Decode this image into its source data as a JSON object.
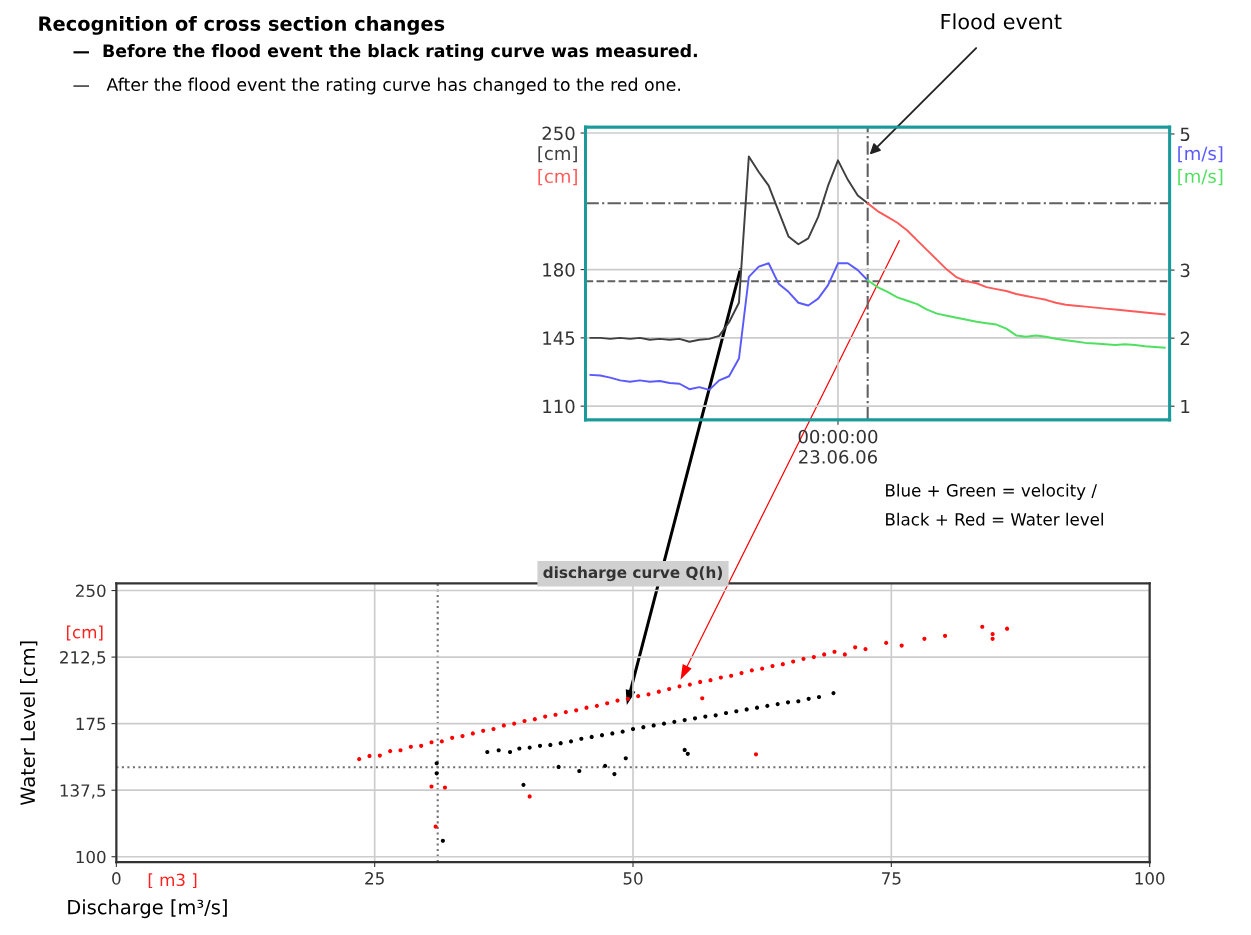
{
  "chart_data": [
    {
      "type": "line",
      "title": "Recognition of cross section changes",
      "categories": [
        null,
        null,
        null,
        null,
        null,
        null,
        null,
        null,
        null,
        null,
        null,
        null,
        null,
        null,
        null,
        null,
        null,
        null,
        null,
        null,
        null,
        null,
        null,
        null,
        null,
        "00:00:00\n23.06.06",
        null,
        null,
        null,
        null,
        null,
        null,
        null,
        null,
        null,
        null,
        null,
        null,
        null,
        null,
        null,
        null,
        null,
        null,
        null,
        null,
        null,
        null,
        null,
        null,
        null,
        null,
        null,
        null,
        null,
        null,
        null,
        null,
        null
      ],
      "series": [
        {
          "name": "[cm]",
          "color": "#404040",
          "values": [
            145,
            145,
            144.5,
            145,
            144.5,
            145,
            144,
            144.5,
            144,
            144.5,
            143,
            144,
            144.5,
            146,
            153,
            163,
            238,
            230,
            223,
            210,
            197,
            193,
            196,
            207,
            223,
            236,
            226,
            218,
            214,
            null,
            null,
            null,
            null,
            null,
            null,
            null,
            null,
            null,
            null,
            null,
            null,
            null,
            null,
            null,
            null,
            null,
            null,
            null,
            null,
            null,
            null,
            null,
            null,
            null,
            null,
            null,
            null,
            null,
            null
          ]
        },
        {
          "name": "[cm]",
          "color": "#ff5a5a",
          "values": [
            null,
            null,
            null,
            null,
            null,
            null,
            null,
            null,
            null,
            null,
            null,
            null,
            null,
            null,
            null,
            null,
            null,
            null,
            null,
            null,
            null,
            null,
            null,
            null,
            null,
            null,
            null,
            null,
            214,
            210,
            207,
            204,
            200,
            195,
            190,
            185,
            180,
            176,
            174,
            173,
            171,
            170,
            169,
            167.5,
            166.5,
            165.5,
            164.5,
            163,
            162,
            161.5,
            161,
            160.5,
            160,
            159.5,
            159,
            158.5,
            158,
            157.5,
            157
          ]
        },
        {
          "name": "[m/s]",
          "color": "#5a5aff",
          "axis": "y2",
          "values": [
            1.46,
            1.45,
            1.42,
            1.38,
            1.36,
            1.38,
            1.36,
            1.37,
            1.34,
            1.33,
            1.25,
            1.28,
            1.24,
            1.38,
            1.44,
            1.7,
            2.9,
            3.05,
            3.1,
            2.8,
            2.68,
            2.52,
            2.48,
            2.58,
            2.78,
            3.1,
            3.1,
            3.0,
            2.85,
            null,
            null,
            null,
            null,
            null,
            null,
            null,
            null,
            null,
            null,
            null,
            null,
            null,
            null,
            null,
            null,
            null,
            null,
            null,
            null,
            null,
            null,
            null,
            null,
            null,
            null,
            null,
            null,
            null,
            null
          ]
        },
        {
          "name": "[m/s]",
          "color": "#4fe060",
          "axis": "y2",
          "values": [
            null,
            null,
            null,
            null,
            null,
            null,
            null,
            null,
            null,
            null,
            null,
            null,
            null,
            null,
            null,
            null,
            null,
            null,
            null,
            null,
            null,
            null,
            null,
            null,
            null,
            null,
            null,
            null,
            2.85,
            2.75,
            2.68,
            2.6,
            2.55,
            2.5,
            2.42,
            2.36,
            2.33,
            2.3,
            2.27,
            2.24,
            2.22,
            2.2,
            2.14,
            2.04,
            2.02,
            2.04,
            2.02,
            1.99,
            1.97,
            1.95,
            1.93,
            1.92,
            1.91,
            1.9,
            1.91,
            1.9,
            1.88,
            1.87,
            1.86
          ]
        }
      ],
      "ylim": [
        103,
        253
      ],
      "yticks": [
        110,
        145,
        180,
        250
      ],
      "y2lim": [
        0.8,
        5.1
      ],
      "y2ticks": [
        1,
        2,
        3,
        5
      ],
      "grid": true,
      "marker": "none",
      "line_style": "solid",
      "ref_lines": [
        {
          "axis": "y",
          "value": 214,
          "line_style": "dashdot",
          "color": "#606060"
        },
        {
          "axis": "y",
          "value": 174,
          "line_style": "dashed",
          "color": "#606060"
        }
      ],
      "annotations": [
        "—  Before the flood event the black rating curve was measured.",
        "—   After the flood event the rating curve has changed to the red one.",
        "Flood event",
        "Blue + Green = velocity /",
        "Black + Red = Water level"
      ]
    },
    {
      "type": "scatter",
      "title": "discharge curve Q(h)",
      "xlabel": "Discharge [m³/s]",
      "ylabel": "Water Level [cm]",
      "xlim": [
        0,
        100
      ],
      "xticks": [
        0,
        25,
        50,
        75,
        100
      ],
      "ylim": [
        97,
        254
      ],
      "yticks": [
        100,
        {
          "value": 137.5,
          "label": "137,5"
        },
        175,
        {
          "value": 212.5,
          "label": "212,5"
        },
        250
      ],
      "grid": true,
      "marker": "circle",
      "series": [
        {
          "color": "#ff0000",
          "x": [
            23.5,
            24.5,
            25.5,
            26.5,
            27.5,
            28.5,
            29.5,
            30.5,
            31.5,
            32.5,
            33.5,
            34.5,
            35.5,
            36.5,
            37.5,
            38.5,
            39.5,
            40.5,
            41.5,
            42.5,
            43.5,
            44.5,
            45.5,
            46.5,
            47.5,
            48.5,
            49.5,
            50.5,
            51.5,
            52.5,
            53.5,
            54.5,
            55.5,
            56.5,
            57.5,
            58.5,
            59.5,
            60.5,
            61.5,
            62.5,
            63.5,
            64.5,
            65.5,
            66.5,
            67.5,
            68.5,
            69.5,
            70.5,
            71.5,
            72.5,
            74.5,
            76,
            78.2,
            80.2,
            83.8,
            84.8,
            84.8,
            86.2,
            30.5,
            30.9,
            31.8,
            40,
            61.9,
            56.7
          ],
          "values": [
            155,
            156.8,
            157,
            159.5,
            160,
            162,
            162.5,
            164.5,
            165,
            167,
            168,
            169.5,
            171,
            172,
            174,
            175,
            176.5,
            177.5,
            179,
            180,
            181.5,
            182.5,
            184,
            185,
            186.5,
            188,
            189,
            190.5,
            191.5,
            193,
            194.5,
            196,
            197,
            198.5,
            199.5,
            201,
            202,
            203.5,
            205,
            206,
            207.5,
            208.5,
            210,
            211.5,
            212.5,
            214,
            215.5,
            214,
            218,
            217,
            220.5,
            219,
            222.8,
            224.5,
            229.6,
            222.8,
            225.5,
            228.5,
            139.6,
            117,
            139,
            134,
            157.7,
            189.3
          ]
        },
        {
          "color": "#000000",
          "x": [
            35.9,
            37,
            38.1,
            39,
            40,
            41,
            42,
            43,
            44,
            45,
            46,
            47,
            48,
            49,
            50,
            51,
            52,
            53,
            54,
            55,
            56,
            57,
            58,
            59,
            60,
            61,
            62,
            63,
            64,
            65,
            66,
            67,
            68,
            69.4,
            31,
            31,
            31.6,
            39.4,
            42.8,
            44.8,
            47.3,
            48.2,
            49.3,
            55,
            55.3
          ],
          "values": [
            159,
            160,
            159,
            161,
            161.5,
            162.5,
            163,
            164,
            165,
            166.5,
            167.5,
            168.5,
            169.5,
            170.5,
            172,
            173,
            174,
            175,
            176,
            177,
            178,
            179,
            179.7,
            181,
            182,
            183,
            184,
            185,
            186,
            187,
            187.6,
            189,
            190,
            192.2,
            152.7,
            147,
            109,
            140.5,
            150.6,
            148.3,
            151.2,
            146.6,
            155.5,
            160.2,
            158
          ]
        }
      ],
      "ref_lines": [
        {
          "axis": "y",
          "value": 150.4,
          "line_style": "dotted",
          "color": "#707070"
        },
        {
          "axis": "x",
          "value": 31.1,
          "line_style": "dotted",
          "color": "#707070"
        }
      ],
      "annotations": [
        "[cm]",
        "[ m3 ]"
      ]
    }
  ]
}
